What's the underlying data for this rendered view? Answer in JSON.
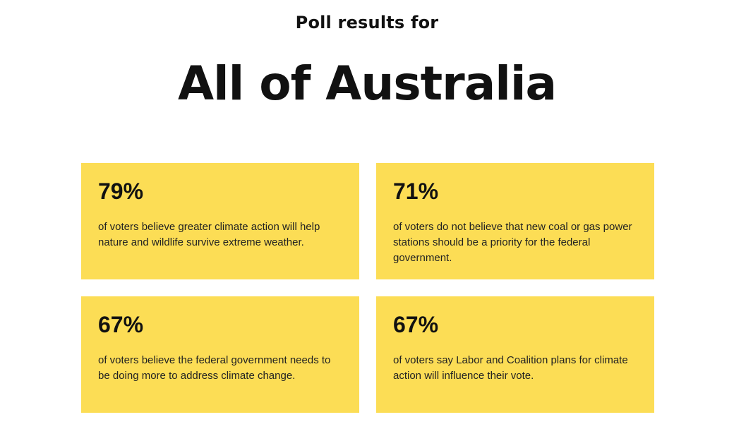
{
  "header": {
    "subtitle": "Poll results for",
    "title": "All of Australia"
  },
  "cards": [
    {
      "stat": "79%",
      "text": "of voters believe greater climate action will help nature and wildlife survive extreme weather."
    },
    {
      "stat": "71%",
      "text": "of voters do not believe that new coal or gas power stations should be a priority for the federal government."
    },
    {
      "stat": "67%",
      "text": "of voters believe the federal government needs to be doing more to address climate change."
    },
    {
      "stat": "67%",
      "text": "of voters say Labor and Coalition plans for climate action will influence their vote."
    }
  ]
}
